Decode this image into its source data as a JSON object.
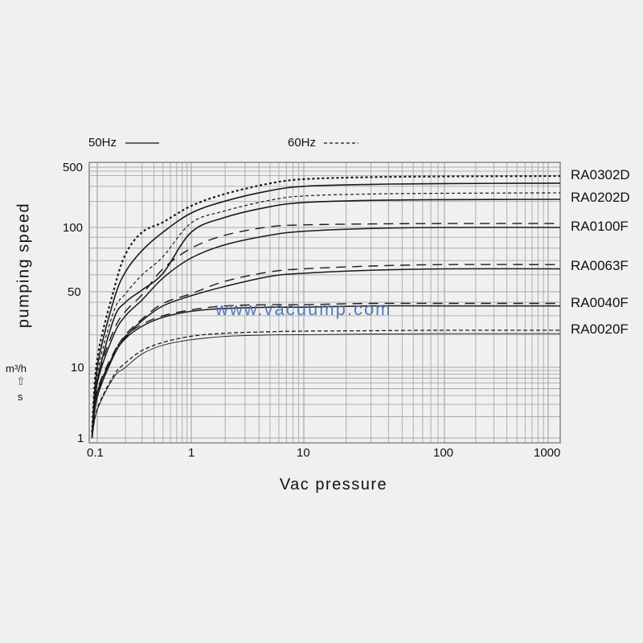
{
  "chart_data": {
    "type": "line",
    "xlabel": "Vac pressure",
    "ylabel": "pumping speed",
    "y_unit": "m³/h",
    "y_unit_alt": "s",
    "x_scale": "log",
    "y_scale": "log",
    "xlim": [
      0.085,
      1200
    ],
    "ylim": [
      1,
      500
    ],
    "grid": true,
    "x_ticks": [
      "0.1",
      "1",
      "10",
      "100",
      "1000"
    ],
    "y_ticks": [
      "1",
      "10",
      "50",
      "100",
      "500"
    ],
    "legend": {
      "placement": "top",
      "entries": [
        {
          "label": "50Hz",
          "style": "solid"
        },
        {
          "label": "60Hz",
          "style": "dashed"
        }
      ]
    },
    "annotation": "www.vacuump.com",
    "x": [
      0.09,
      0.1,
      0.15,
      0.2,
      0.3,
      0.5,
      1,
      2,
      5,
      10,
      30,
      100,
      1000
    ],
    "series": [
      {
        "model": "RA0302D",
        "freq": "60Hz",
        "values": [
          1.2,
          12,
          51,
          75,
          95,
          115,
          178,
          245,
          324,
          363,
          383,
          391,
          395
        ]
      },
      {
        "model": "RA0302D",
        "freq": "50Hz",
        "values": [
          1,
          10,
          42,
          62,
          78,
          95,
          147,
          202,
          267,
          300,
          316,
          323,
          326
        ]
      },
      {
        "model": "RA0202D",
        "freq": "60Hz",
        "values": [
          1,
          8,
          33,
          48,
          60,
          73,
          113,
          156,
          207,
          232,
          244,
          249,
          252
        ]
      },
      {
        "model": "RA0202D",
        "freq": "50Hz",
        "values": [
          1,
          6.4,
          28,
          40,
          51,
          61,
          95,
          131,
          174,
          195,
          206,
          210,
          212
        ]
      },
      {
        "model": "RA0100F",
        "freq": "60Hz",
        "values": [
          1.1,
          6.7,
          22,
          33,
          47,
          64,
          80,
          92,
          102,
          107,
          110,
          111,
          111
        ]
      },
      {
        "model": "RA0100F",
        "freq": "50Hz",
        "values": [
          1,
          6,
          20,
          30,
          42,
          58,
          72,
          83,
          92,
          96,
          99,
          100,
          100
        ]
      },
      {
        "model": "RA0063F",
        "freq": "60Hz",
        "values": [
          1,
          4,
          13.4,
          20,
          28,
          39,
          48,
          56,
          62,
          64,
          66,
          67,
          67
        ]
      },
      {
        "model": "RA0063F",
        "freq": "50Hz",
        "values": [
          1,
          3.8,
          12.8,
          19,
          27,
          37,
          46,
          53,
          59,
          61,
          63,
          64,
          64
        ]
      },
      {
        "model": "RA0040F",
        "freq": "60Hz",
        "values": [
          1.2,
          4.7,
          13.7,
          19.5,
          25,
          30,
          34,
          37,
          38,
          38,
          39,
          39,
          39
        ]
      },
      {
        "model": "RA0040F",
        "freq": "50Hz",
        "values": [
          1.1,
          4.4,
          13,
          18.5,
          24,
          29,
          33,
          35,
          36,
          36,
          37,
          37,
          37
        ]
      },
      {
        "model": "RA0020F",
        "freq": "60Hz",
        "values": [
          1,
          2.6,
          7.7,
          11,
          14.3,
          17,
          19.4,
          20.7,
          21.3,
          21.6,
          21.8,
          22,
          22
        ]
      },
      {
        "model": "RA0020F",
        "freq": "50Hz",
        "values": [
          1,
          2.5,
          7.2,
          10,
          13.3,
          16,
          18,
          19.3,
          19.9,
          20,
          20.3,
          20.5,
          20.5
        ]
      }
    ],
    "curve_labels": [
      "RA0302D",
      "RA0202D",
      "RA0100F",
      "RA0063F",
      "RA0040F",
      "RA0020F"
    ],
    "colors": {
      "background": "#eff0ef",
      "grid": "#a8a8a8",
      "curves": "#1a1a1a",
      "watermark": "#4a6cb0"
    }
  }
}
